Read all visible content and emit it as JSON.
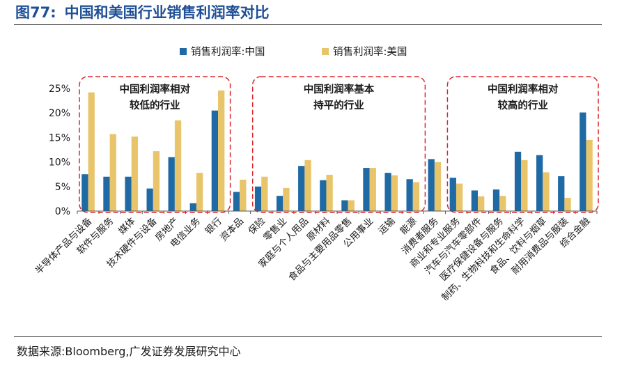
{
  "figure": {
    "number": "图77:",
    "title": "中国和美国行业销售利润率对比",
    "source": "数据来源:Bloomberg,广发证券发展研究中心"
  },
  "colors": {
    "china": "#1f6aa5",
    "usa": "#e8c56a",
    "group_box": "#d9262b",
    "title": "#1f5096"
  },
  "chart_data": {
    "type": "bar",
    "title": "",
    "xlabel": "",
    "ylabel": "",
    "ylim": [
      0,
      0.25
    ],
    "yticks": [
      0,
      0.05,
      0.1,
      0.15,
      0.2,
      0.25
    ],
    "ytick_labels": [
      "0%",
      "5%",
      "10%",
      "15%",
      "20%",
      "25%"
    ],
    "grid": false,
    "legend_position": "top-center",
    "categories": [
      "半导体产品与设备",
      "软件与服务",
      "媒体",
      "技术硬件与设备",
      "房地产",
      "电信业务",
      "银行",
      "资本品",
      "保险",
      "零售业",
      "家庭与个人用品",
      "原材料",
      "食品与主要用品零售",
      "公用事业",
      "运输",
      "能源",
      "消费者服务",
      "商业和专业服务",
      "汽车与汽车零部件",
      "医疗保健设备与服务",
      "制药、生物科技和生命科学",
      "食品、饮料与烟草",
      "耐用消费品与服装",
      "综合金融"
    ],
    "series": [
      {
        "name": "销售利润率:中国",
        "color": "#1f6aa5",
        "values": [
          0.075,
          0.07,
          0.07,
          0.046,
          0.11,
          0.016,
          0.205,
          0.039,
          0.05,
          0.031,
          0.092,
          0.063,
          0.022,
          0.088,
          0.078,
          0.065,
          0.106,
          0.068,
          0.042,
          0.044,
          0.121,
          0.114,
          0.071,
          0.201
        ]
      },
      {
        "name": "销售利润率:美国",
        "color": "#e8c56a",
        "values": [
          0.242,
          0.157,
          0.152,
          0.122,
          0.185,
          0.078,
          0.246,
          0.064,
          0.07,
          0.047,
          0.104,
          0.074,
          0.022,
          0.088,
          0.073,
          0.059,
          0.1,
          0.056,
          0.03,
          0.031,
          0.104,
          0.079,
          0.027,
          0.145
        ]
      }
    ],
    "groups": [
      {
        "label": "中国利润率相对较低的行业",
        "line1": "中国利润率相对",
        "line2": "较低的行业",
        "from": 0,
        "to": 6
      },
      {
        "label": "中国利润率基本持平的行业",
        "line1": "中国利润率基本",
        "line2": "持平的行业",
        "from": 8,
        "to": 15
      },
      {
        "label": "中国利润率相对较高的行业",
        "line1": "中国利润率相对",
        "line2": "较高的行业",
        "from": 17,
        "to": 23
      }
    ]
  }
}
